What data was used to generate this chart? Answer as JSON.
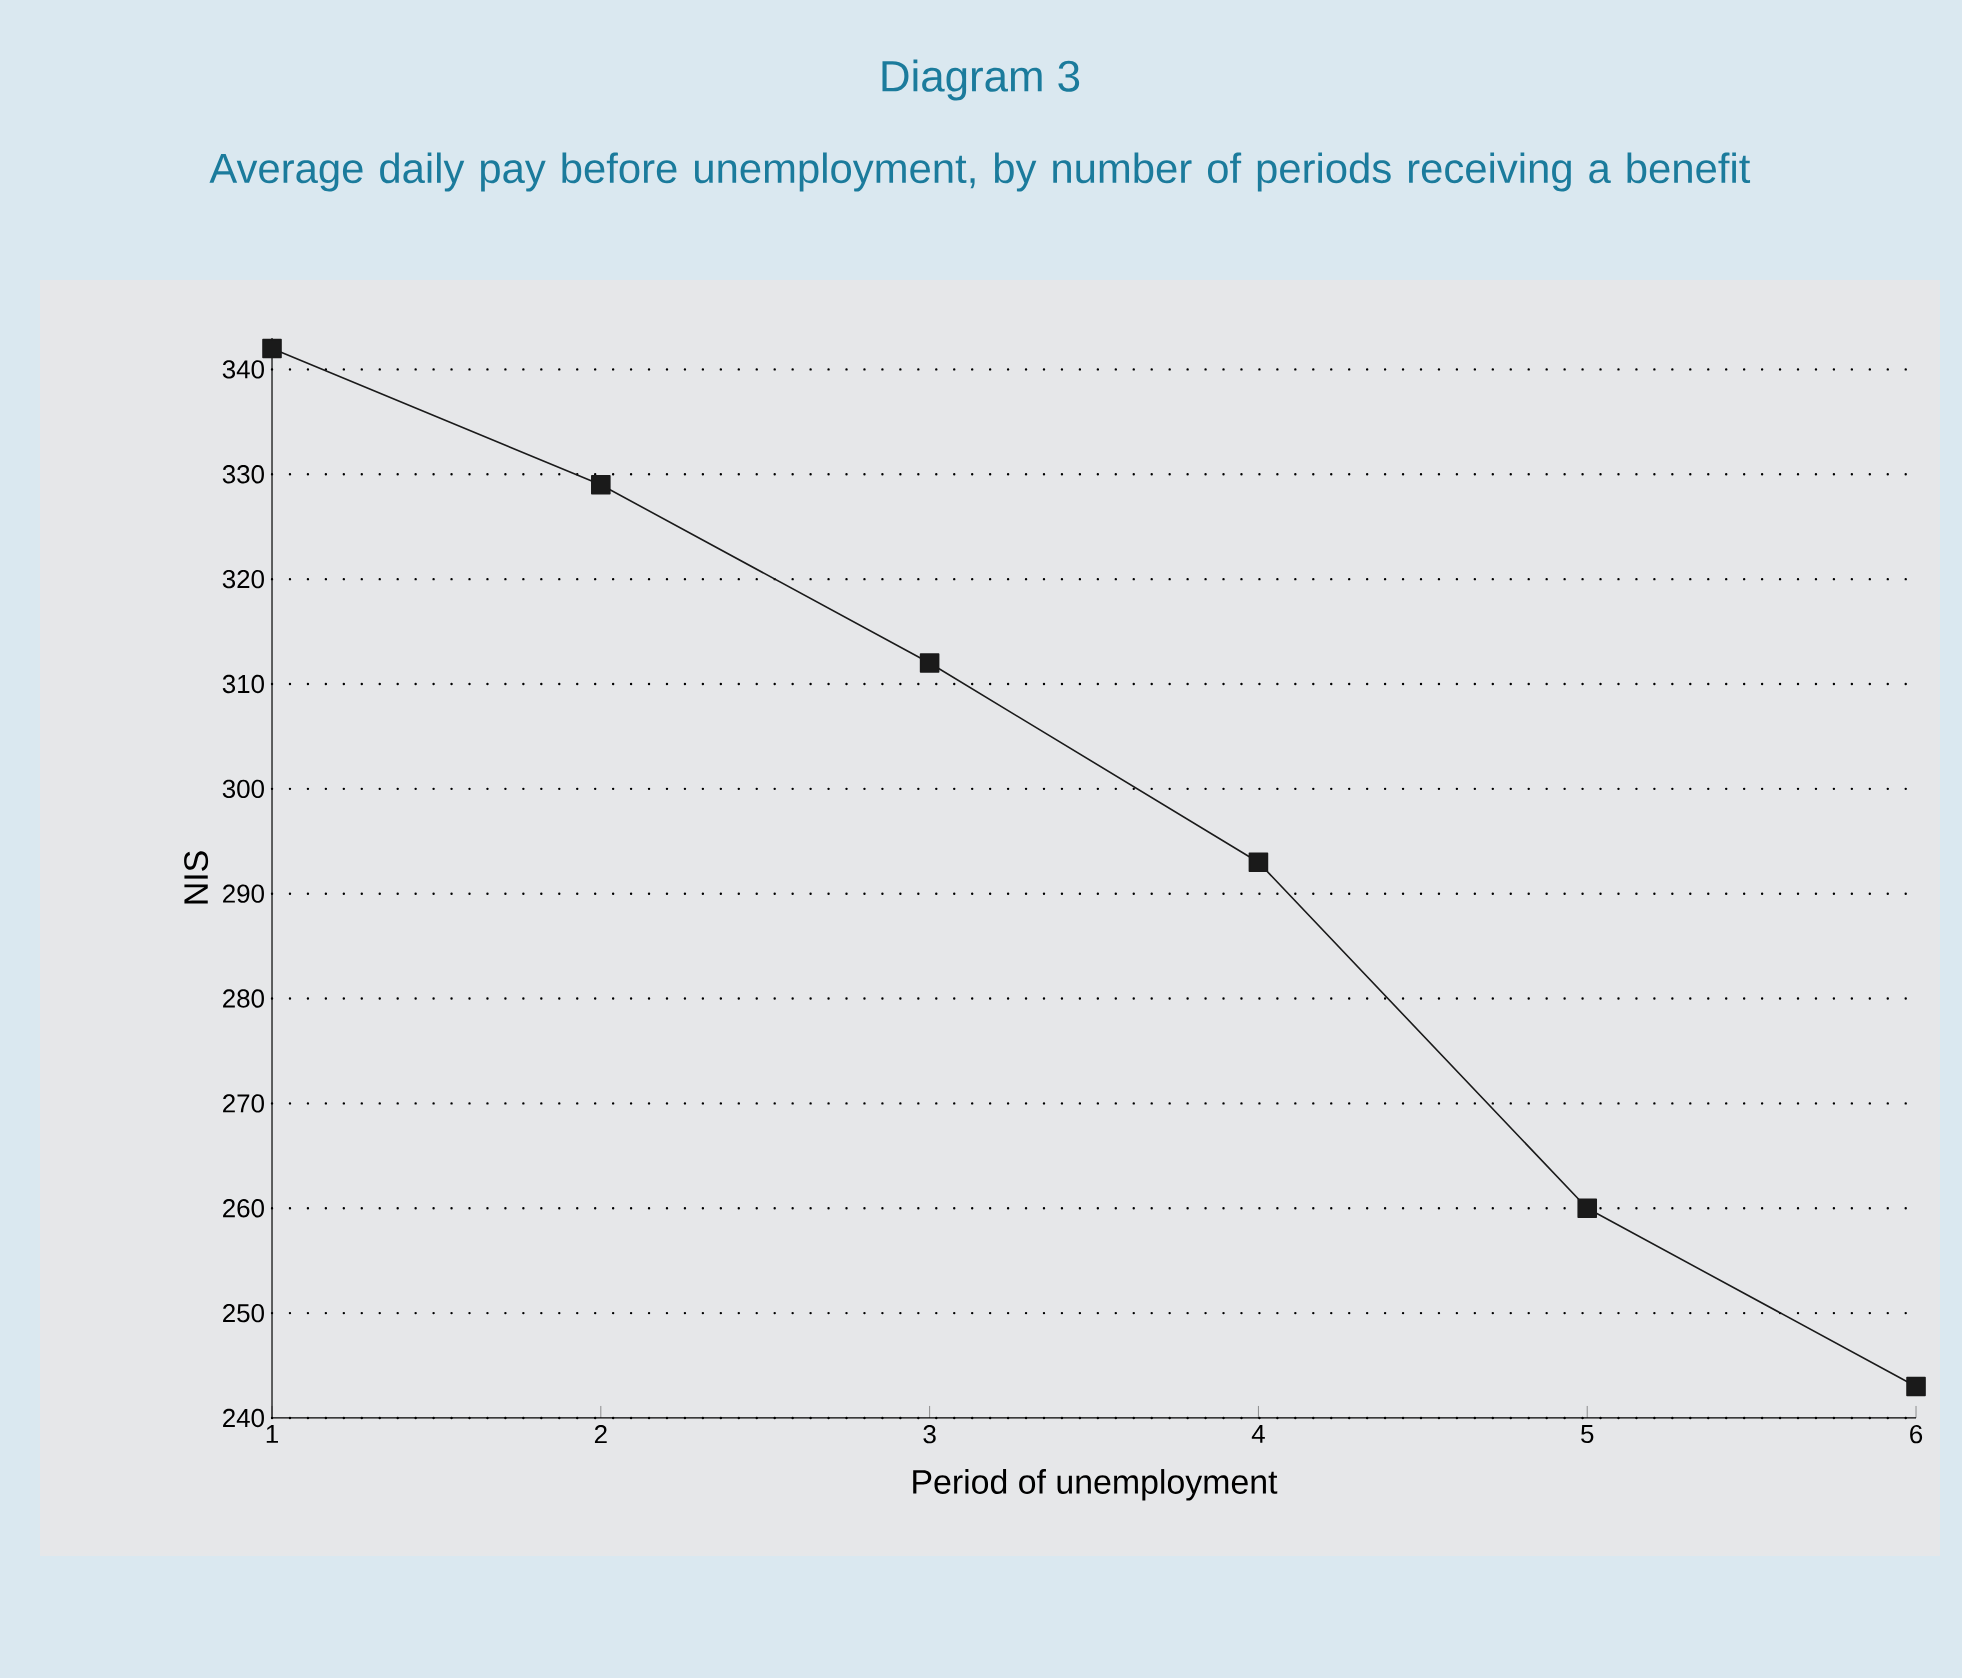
{
  "chart_data": {
    "type": "line",
    "title": "Diagram 3",
    "subtitle": "Average daily pay before unemployment, by number of periods receiving a benefit",
    "xlabel": "Period of unemployment",
    "ylabel": "NIS",
    "x": [
      1,
      2,
      3,
      4,
      5,
      6
    ],
    "series": [
      {
        "color": "#1a1a1a",
        "values": [
          342,
          329,
          312,
          293,
          260,
          243
        ]
      }
    ],
    "xlim": [
      1,
      6
    ],
    "xticks": [
      1,
      2,
      3,
      4,
      5,
      6
    ],
    "ylim": [
      240,
      343
    ],
    "yticks": [
      240,
      250,
      260,
      270,
      280,
      290,
      300,
      310,
      320,
      330,
      340
    ],
    "grid": "y",
    "marker": "square",
    "line_style": "solid"
  }
}
